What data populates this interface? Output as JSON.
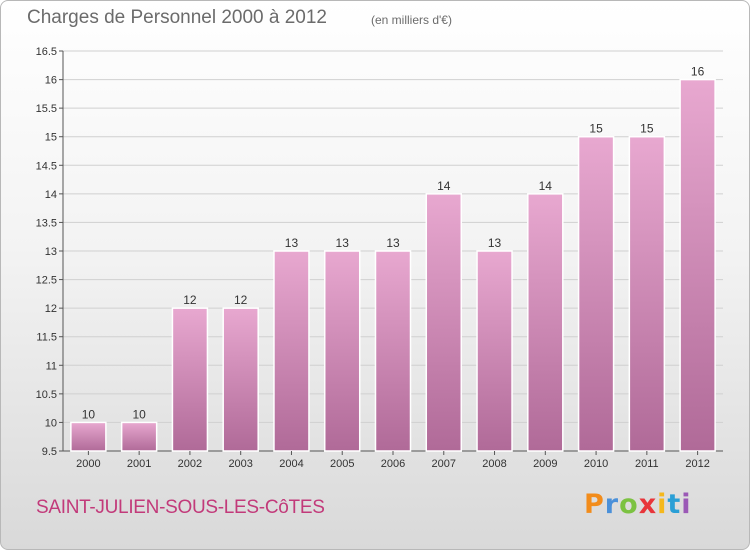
{
  "header": {
    "title": "Charges de Personnel 2000 à 2012",
    "subtitle": "(en milliers d'€)"
  },
  "footer": {
    "place": "SAINT-JULIEN-SOUS-LES-CôTES",
    "logo_letters": [
      "P",
      "r",
      "o",
      "x",
      "i",
      "t",
      "i"
    ],
    "logo_colors": [
      "#f28c1b",
      "#4a90d9",
      "#7cc242",
      "#e8353a",
      "#f5b81c",
      "#2a9fd6",
      "#9b59b6"
    ]
  },
  "colors": {
    "bar_top": "#e8a8d0",
    "bar_bottom": "#b06a98",
    "grid": "#d0d0d0"
  },
  "chart_data": {
    "type": "bar",
    "title": "Charges de Personnel 2000 à 2012",
    "subtitle": "(en milliers d'€)",
    "xlabel": "",
    "ylabel": "",
    "categories": [
      "2000",
      "2001",
      "2002",
      "2003",
      "2004",
      "2005",
      "2006",
      "2007",
      "2008",
      "2009",
      "2010",
      "2011",
      "2012"
    ],
    "values": [
      10,
      10,
      12,
      12,
      13,
      13,
      13,
      14,
      13,
      14,
      15,
      15,
      16
    ],
    "labels": [
      "10",
      "10",
      "12",
      "12",
      "13",
      "13",
      "13",
      "14",
      "13",
      "14",
      "15",
      "15",
      "16"
    ],
    "ylim": [
      9.5,
      16.5
    ],
    "yticks": [
      "9.5",
      "10",
      "10.5",
      "11",
      "11.5",
      "12",
      "12.5",
      "13",
      "13.5",
      "14",
      "14.5",
      "15",
      "15.5",
      "16",
      "16.5"
    ],
    "grid": true
  }
}
